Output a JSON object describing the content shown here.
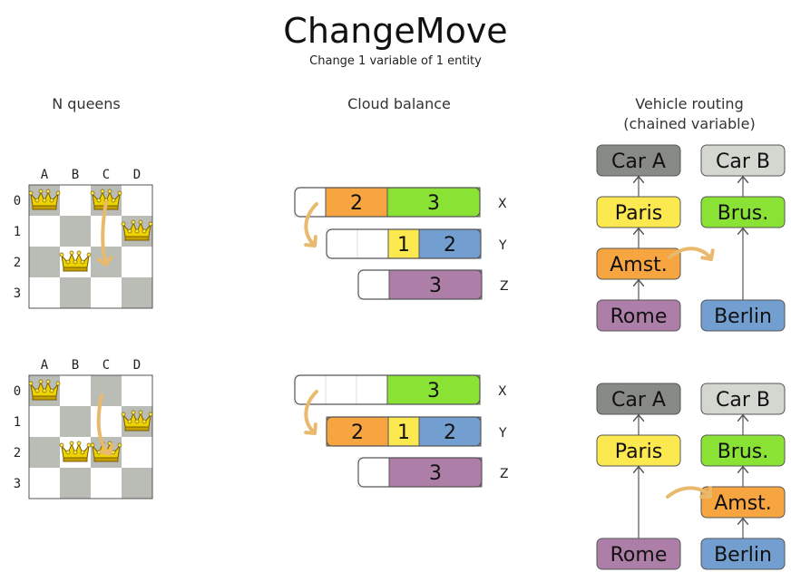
{
  "title": "ChangeMove",
  "subtitle": "Change 1 variable of 1 entity",
  "sections": {
    "queens": "N queens",
    "cloud": "Cloud balance",
    "vehicle_line1": "Vehicle routing",
    "vehicle_line2": "(chained variable)"
  },
  "colors": {
    "orange": "#f7a541",
    "green": "#8ae234",
    "yellow": "#fce94f",
    "blue": "#729fcf",
    "purple": "#ad7fa8",
    "dark_gray": "#888a85",
    "light_gray": "#d3d7cf",
    "board_gray": "#babdb6",
    "arrow": "#e9b96e"
  },
  "queens": {
    "columns": [
      "A",
      "B",
      "C",
      "D"
    ],
    "rows": [
      "0",
      "1",
      "2",
      "3"
    ],
    "before": {
      "queens": [
        [
          0,
          0
        ],
        [
          1,
          2
        ],
        [
          2,
          0
        ],
        [
          3,
          1
        ]
      ],
      "move": {
        "column": "C",
        "from_row": 0,
        "to_row": 2
      }
    },
    "after": {
      "queens": [
        [
          0,
          0
        ],
        [
          1,
          2
        ],
        [
          2,
          2
        ],
        [
          3,
          1
        ]
      ]
    }
  },
  "cloud": {
    "computers": [
      "X",
      "Y",
      "Z"
    ],
    "before": {
      "X": [
        {
          "label": "2",
          "color": "orange"
        },
        {
          "label": "3",
          "color": "green"
        }
      ],
      "Y": [
        {
          "label": "1",
          "color": "yellow"
        },
        {
          "label": "2",
          "color": "blue"
        }
      ],
      "Z": [
        {
          "label": "3",
          "color": "purple"
        }
      ]
    },
    "after": {
      "X": [
        {
          "label": "3",
          "color": "green"
        }
      ],
      "Y": [
        {
          "label": "2",
          "color": "orange"
        },
        {
          "label": "1",
          "color": "yellow"
        },
        {
          "label": "2",
          "color": "blue"
        }
      ],
      "Z": [
        {
          "label": "3",
          "color": "purple"
        }
      ]
    }
  },
  "vehicle": {
    "before": {
      "car_a": [
        "Car A",
        "Paris",
        "Amst.",
        "Rome"
      ],
      "car_b": [
        "Car B",
        "Brus.",
        "Berlin"
      ]
    },
    "after": {
      "car_a": [
        "Car A",
        "Paris",
        "Rome"
      ],
      "car_b": [
        "Car B",
        "Brus.",
        "Amst.",
        "Berlin"
      ]
    }
  }
}
